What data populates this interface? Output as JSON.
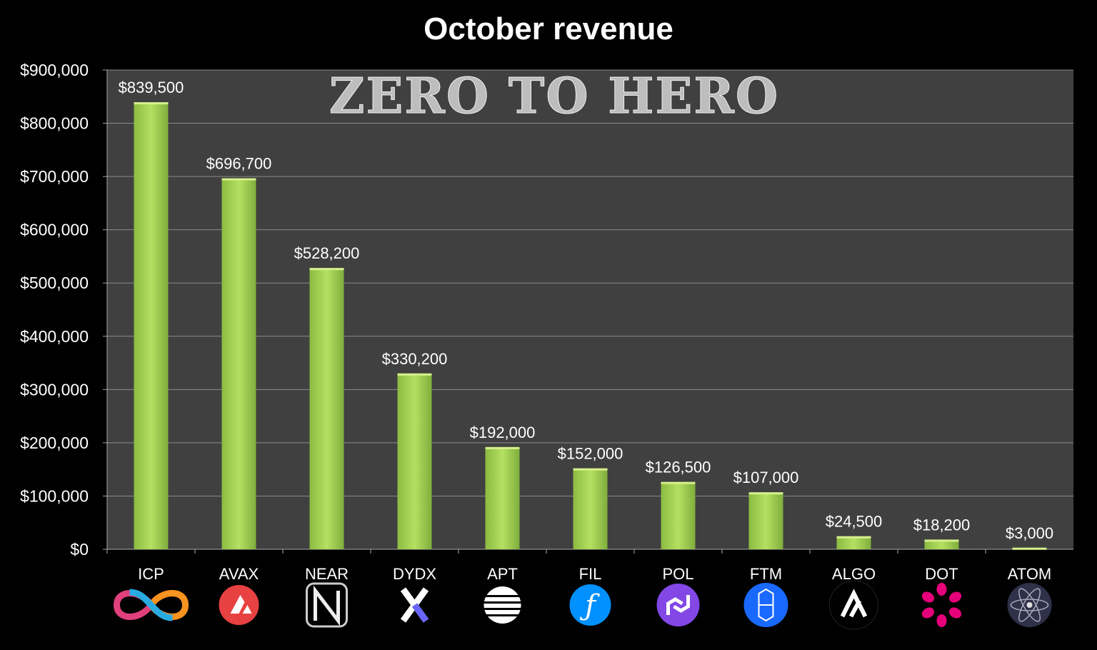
{
  "chart_data": {
    "type": "bar",
    "title": "October revenue",
    "watermark": "ZERO TO HERO",
    "xlabel": "",
    "ylabel": "",
    "ylim": [
      0,
      900000
    ],
    "grid": true,
    "yticks": [
      0,
      100000,
      200000,
      300000,
      400000,
      500000,
      600000,
      700000,
      800000,
      900000
    ],
    "ytick_labels": [
      "$0",
      "$100,000",
      "$200,000",
      "$300,000",
      "$400,000",
      "$500,000",
      "$600,000",
      "$700,000",
      "$800,000",
      "$900,000"
    ],
    "categories": [
      "ICP",
      "AVAX",
      "NEAR",
      "DYDX",
      "APT",
      "FIL",
      "POL",
      "FTM",
      "ALGO",
      "DOT",
      "ATOM"
    ],
    "values": [
      839500,
      696700,
      528200,
      330200,
      192000,
      152000,
      126500,
      107000,
      24500,
      18200,
      3000
    ],
    "data_labels": [
      "$839,500",
      "$696,700",
      "$528,200",
      "$330,200",
      "$192,000",
      "$152,000",
      "$126,500",
      "$107,000",
      "$24,500",
      "$18,200",
      "$3,000"
    ],
    "icons": [
      "icp-infinity-icon",
      "avax-icon",
      "near-icon",
      "dydx-icon",
      "aptos-icon",
      "filecoin-icon",
      "polygon-icon",
      "fantom-icon",
      "algorand-icon",
      "polkadot-icon",
      "cosmos-atom-icon"
    ],
    "colors": {
      "bar_light": "#b5e061",
      "bar_dark": "#7fae3c",
      "plot_bg": "#404040",
      "grid": "#8a8a8a"
    }
  }
}
